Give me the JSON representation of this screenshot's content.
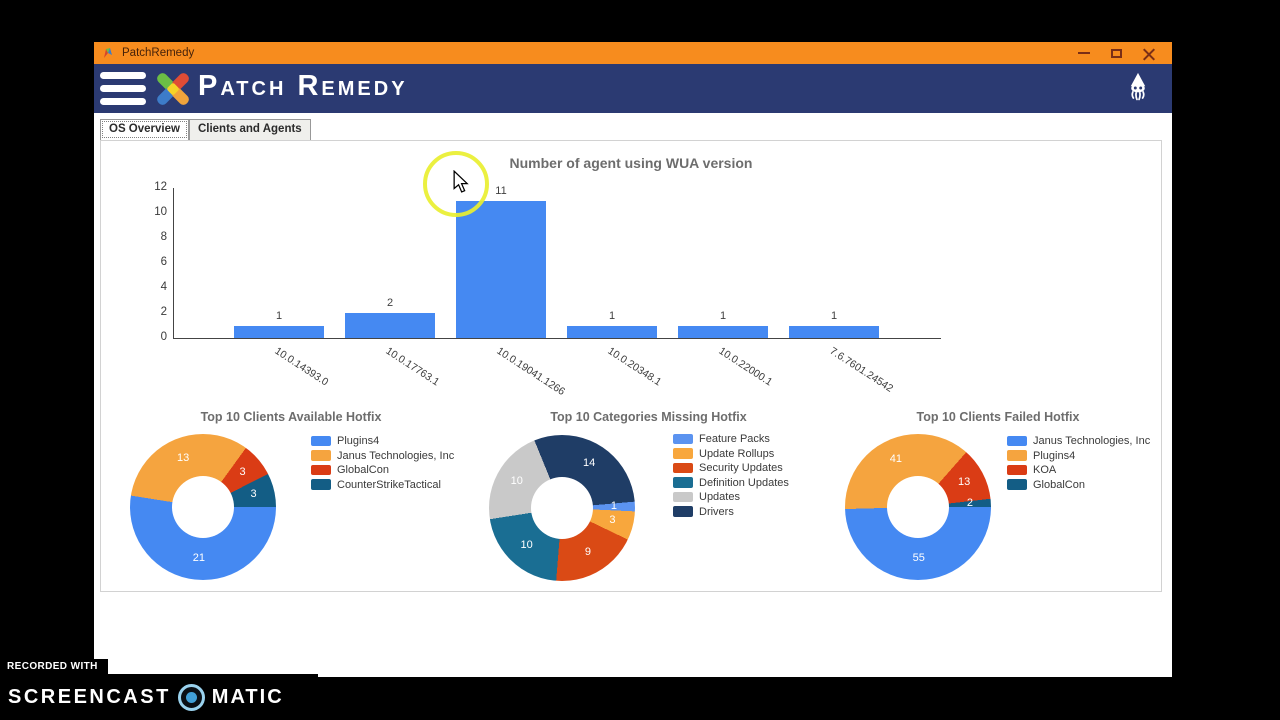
{
  "window": {
    "title": "PatchRemedy",
    "controls": {
      "minimize": "minimize",
      "maximize": "maximize",
      "close": "close"
    }
  },
  "header": {
    "brand": "Patch Remedy"
  },
  "tabs": [
    {
      "label": "OS Overview",
      "active": true
    },
    {
      "label": "Clients and Agents",
      "active": false
    }
  ],
  "chart_data": [
    {
      "type": "bar",
      "title": "Number of agent using WUA version",
      "categories": [
        "10.0.14393.0",
        "10.0.17763.1",
        "10.0.19041.1266",
        "10.0.20348.1",
        "10.0.22000.1",
        "7.6.7601.24542"
      ],
      "values": [
        1,
        2,
        11,
        1,
        1,
        1
      ],
      "xlabel": "",
      "ylabel": "",
      "ylim": [
        0,
        12
      ],
      "yticks": [
        0,
        2,
        4,
        6,
        8,
        10,
        12
      ],
      "grid": false,
      "bar_color": "#4589F2",
      "legend_position": "none"
    },
    {
      "type": "pie",
      "donut": true,
      "title": "Top 10 Clients Available Hotfix",
      "labels": [
        "Plugins4",
        "Janus Technologies, Inc",
        "GlobalCon",
        "CounterStrikeTactical"
      ],
      "values": [
        21,
        13,
        3,
        3
      ],
      "colors": [
        "#4589F2",
        "#F5A43F",
        "#DA3C15",
        "#135D85"
      ],
      "start_angle": 90,
      "legend_position": "right"
    },
    {
      "type": "pie",
      "donut": true,
      "title": "Top 10 Categories Missing Hotfix",
      "labels": [
        "Feature Packs",
        "Update Rollups",
        "Security Updates",
        "Definition Updates",
        "Updates",
        "Drivers"
      ],
      "values": [
        1,
        3,
        9,
        10,
        10,
        14
      ],
      "colors": [
        "#5B93F0",
        "#F8A73D",
        "#DA4A15",
        "#1A6E93",
        "#C9C9C9",
        "#1F3D66"
      ],
      "start_angle": 85,
      "legend_position": "right"
    },
    {
      "type": "pie",
      "donut": true,
      "title": "Top 10 Clients Failed Hotfix",
      "labels": [
        "Janus Technologies, Inc",
        "Plugins4",
        "KOA",
        "GlobalCon"
      ],
      "values": [
        55,
        41,
        13,
        2
      ],
      "colors": [
        "#4589F2",
        "#F5A43F",
        "#DA3C15",
        "#135D85"
      ],
      "start_angle": 90,
      "legend_position": "right"
    }
  ],
  "watermark": {
    "recorded_with": "RECORDED WITH",
    "brand_left": "SCREENCAST",
    "brand_right": "MATIC"
  },
  "icons": {
    "app_icon": "patch-remedy-app-icon",
    "menu": "hamburger-menu-icon",
    "logo": "crossed-bandages-logo",
    "squid": "squid-icon",
    "screencast": "screencast-o-matic-logo"
  },
  "colors": {
    "titlebar": "#F78C1E",
    "header": "#2B3A72",
    "accent_blue": "#4589F2",
    "panel_border": "#D2D2D2",
    "chart_title": "#6D6D6D"
  }
}
